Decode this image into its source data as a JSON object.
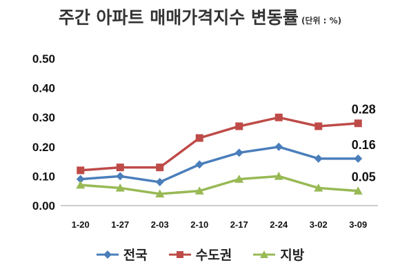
{
  "chart_data": {
    "type": "line",
    "title": "주간 아파트 매매가격지수 변동률",
    "unit": "(단위 : %)",
    "categories": [
      "1-20",
      "1-27",
      "2-03",
      "2-10",
      "2-17",
      "2-24",
      "3-02",
      "3-09"
    ],
    "ylim": [
      0,
      0.5
    ],
    "yticks": [
      "0.00",
      "0.10",
      "0.20",
      "0.30",
      "0.40",
      "0.50"
    ],
    "grid": false,
    "legend_position": "bottom",
    "series": [
      {
        "name": "전국",
        "color": "#4a7ebb",
        "marker": "diamond",
        "values": [
          0.09,
          0.1,
          0.08,
          0.14,
          0.18,
          0.2,
          0.16,
          0.16
        ],
        "end_label": "0.16"
      },
      {
        "name": "수도권",
        "color": "#be4b48",
        "marker": "square",
        "values": [
          0.12,
          0.13,
          0.13,
          0.23,
          0.27,
          0.3,
          0.27,
          0.28
        ],
        "end_label": "0.28"
      },
      {
        "name": "지방",
        "color": "#98b954",
        "marker": "triangle",
        "values": [
          0.07,
          0.06,
          0.04,
          0.05,
          0.09,
          0.1,
          0.06,
          0.05
        ],
        "end_label": "0.05"
      }
    ]
  }
}
